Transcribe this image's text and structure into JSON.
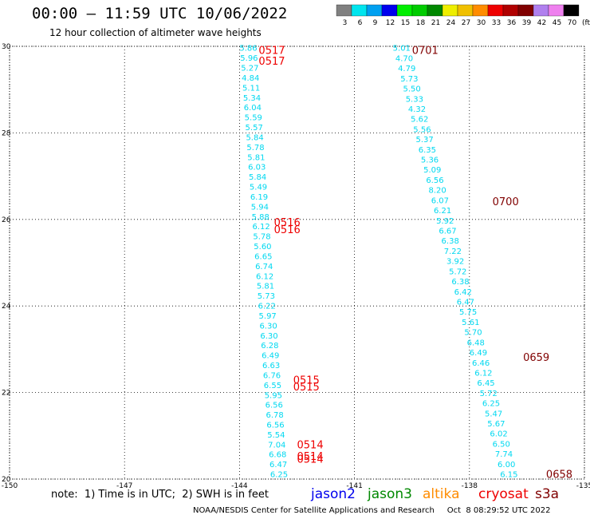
{
  "header": {
    "title": "00:00 – 11:59 UTC 10/06/2022",
    "subtitle": "12 hour collection of altimeter wave heights"
  },
  "legend": {
    "unit_label": "(ft)",
    "swatches": [
      {
        "value": "3",
        "color": "#808080"
      },
      {
        "value": "6",
        "color": "#00e5ee"
      },
      {
        "value": "9",
        "color": "#00a0f0"
      },
      {
        "value": "12",
        "color": "#0000ee"
      },
      {
        "value": "15",
        "color": "#00ee00"
      },
      {
        "value": "18",
        "color": "#00cc00"
      },
      {
        "value": "21",
        "color": "#008800"
      },
      {
        "value": "24",
        "color": "#eeee00"
      },
      {
        "value": "27",
        "color": "#f0c000"
      },
      {
        "value": "30",
        "color": "#ff8c00"
      },
      {
        "value": "33",
        "color": "#ee0000"
      },
      {
        "value": "36",
        "color": "#b00000"
      },
      {
        "value": "39",
        "color": "#800000"
      },
      {
        "value": "42",
        "color": "#b080ee"
      },
      {
        "value": "45",
        "color": "#ee80ee"
      },
      {
        "value": "70",
        "color": "#000000"
      }
    ]
  },
  "map": {
    "lon_range": [
      -150,
      -135
    ],
    "lat_range": [
      20,
      30
    ],
    "x_ticks": [
      "-150",
      "-147",
      "-144",
      "-141",
      "-138",
      "-135"
    ],
    "y_ticks": [
      "30",
      "28",
      "26",
      "24",
      "22",
      "20"
    ],
    "gridlines": true,
    "wave_color": "#00d8f0",
    "track_a_lon": [
      -144.0,
      -143.2
    ],
    "track_b_lon": [
      -140.0,
      -137.2
    ],
    "track_a": [
      "5.86",
      "5.96",
      "5.27",
      "4.84",
      "5.11",
      "5.34",
      "6.04",
      "5.59",
      "5.57",
      "5.84",
      "5.78",
      "5.81",
      "6.03",
      "5.84",
      "5.49",
      "6.19",
      "5.94",
      "5.88",
      "6.12",
      "5.78",
      "5.60",
      "6.65",
      "6.74",
      "6.12",
      "5.81",
      "5.73",
      "6.22",
      "5.97",
      "6.30",
      "6.30",
      "6.28",
      "6.49",
      "6.63",
      "6.76",
      "6.55",
      "5.95",
      "6.56",
      "6.78",
      "6.56",
      "5.54",
      "7.04",
      "6.68",
      "6.47",
      "6.25"
    ],
    "track_b": [
      "5.01",
      "4.70",
      "4.79",
      "5.73",
      "5.50",
      "5.33",
      "4.32",
      "5.62",
      "5.56",
      "5.37",
      "6.35",
      "5.36",
      "5.09",
      "6.56",
      "8.20",
      "6.07",
      "6.21",
      "5.92",
      "6.67",
      "6.38",
      "7.22",
      "3.92",
      "5.72",
      "6.38",
      "6.42",
      "6.47",
      "5.75",
      "5.61",
      "5.70",
      "6.48",
      "6.49",
      "6.46",
      "6.12",
      "6.45",
      "5.72",
      "6.25",
      "5.47",
      "5.67",
      "6.02",
      "6.50",
      "7.74",
      "6.00",
      "6.15"
    ],
    "time_labels": [
      {
        "text": "0517",
        "color": "#ee0000"
      },
      {
        "text": "0517",
        "color": "#ee0000"
      },
      {
        "text": "0516",
        "color": "#ee0000"
      },
      {
        "text": "0516",
        "color": "#ee0000"
      },
      {
        "text": "0515",
        "color": "#ee0000"
      },
      {
        "text": "0515",
        "color": "#ee0000"
      },
      {
        "text": "0514",
        "color": "#ee0000"
      },
      {
        "text": "0514",
        "color": "#ee0000"
      },
      {
        "text": "0514",
        "color": "#ee0000"
      },
      {
        "text": "0701",
        "color": "#800000"
      },
      {
        "text": "0700",
        "color": "#800000"
      },
      {
        "text": "0659",
        "color": "#800000"
      },
      {
        "text": "0658",
        "color": "#800000"
      }
    ]
  },
  "footer": {
    "note": "note:  1) Time is in UTC;  2) SWH is in feet",
    "satellites": [
      {
        "name": "jason2",
        "color": "#0000ee"
      },
      {
        "name": "jason3",
        "color": "#008800"
      },
      {
        "name": "altika",
        "color": "#ff8c00"
      },
      {
        "name": "cryosat",
        "color": "#ee0000"
      },
      {
        "name": "s3a",
        "color": "#800000"
      }
    ],
    "credit": "NOAA/NESDIS Center for Satellite Applications and Research     Oct  8 08:29:52 UTC 2022"
  }
}
